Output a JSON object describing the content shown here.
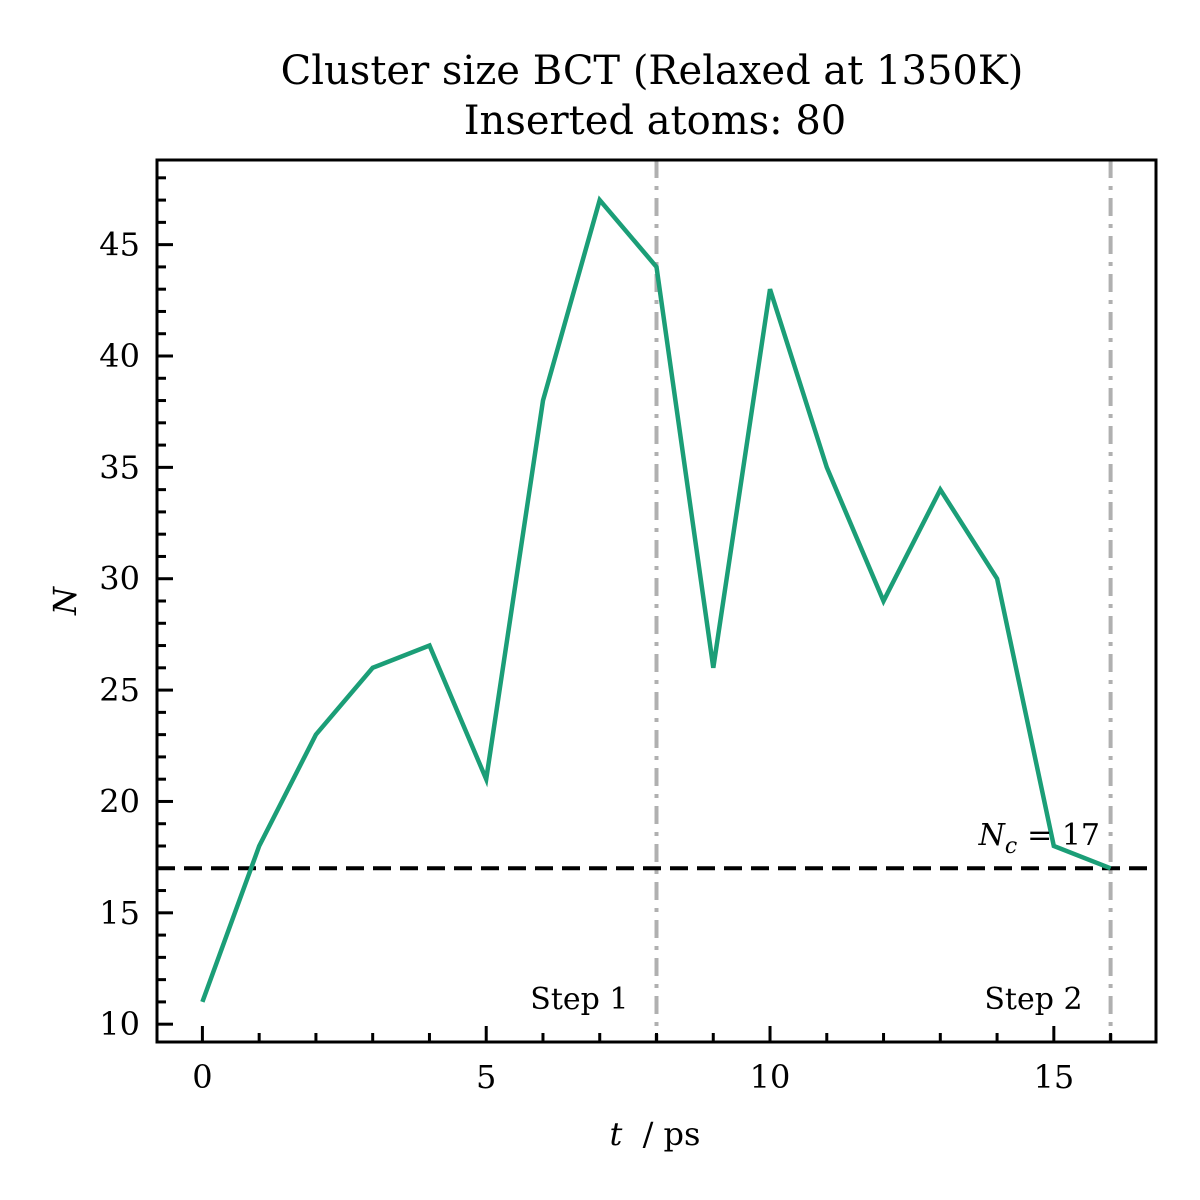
{
  "chart_data": {
    "type": "line",
    "title": "Cluster size BCT (Relaxed at 1350K)",
    "subtitle": "Inserted atoms: 80",
    "xlabel_var": "t",
    "xlabel_unit": "/ ps",
    "ylabel": "N",
    "xlim": [
      -0.8,
      16.8
    ],
    "ylim": [
      9.2,
      48.8
    ],
    "xticks": [
      0,
      5,
      10,
      15
    ],
    "yticks": [
      10,
      15,
      20,
      25,
      30,
      35,
      40,
      45
    ],
    "grid": false,
    "series": [
      {
        "color": "#1b9e77",
        "x": [
          0,
          1,
          2,
          3,
          4,
          5,
          6,
          7,
          8,
          9,
          10,
          11,
          12,
          13,
          14,
          15,
          16
        ],
        "y": [
          11,
          18,
          23,
          26,
          27,
          21,
          38,
          47,
          44,
          26,
          43,
          35,
          29,
          34,
          30,
          18,
          17
        ]
      }
    ],
    "hline": {
      "y": 17,
      "color": "#000000",
      "label_var": "N",
      "label_sub": "c",
      "label_rest": "= 17"
    },
    "vlines": [
      {
        "x": 8,
        "color": "#b0b0b0",
        "label": "Step 1"
      },
      {
        "x": 16,
        "color": "#b0b0b0",
        "label": "Step 2"
      }
    ]
  }
}
